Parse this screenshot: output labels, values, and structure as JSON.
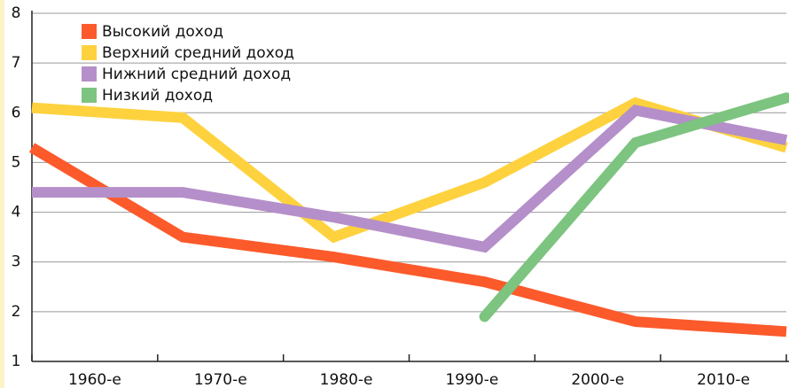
{
  "chart_data": {
    "type": "line",
    "categories": [
      "1960-е",
      "1970-е",
      "1980-е",
      "1990-е",
      "2000-е",
      "2010-е"
    ],
    "series": [
      {
        "name": "Высокий доход",
        "color": "#fc5a2b",
        "values": [
          5.3,
          3.5,
          3.1,
          2.6,
          1.8,
          1.6
        ]
      },
      {
        "name": "Верхний средний доход",
        "color": "#fed23e",
        "values": [
          6.1,
          5.9,
          3.5,
          4.6,
          6.2,
          5.3
        ]
      },
      {
        "name": "Нижний средний доход",
        "color": "#b58fc9",
        "values": [
          4.4,
          4.4,
          3.9,
          3.3,
          6.05,
          5.45
        ]
      },
      {
        "name": "Низкий доход",
        "color": "#7cc480",
        "values": [
          null,
          null,
          null,
          1.9,
          5.4,
          6.3
        ]
      }
    ],
    "ylim": [
      1,
      8
    ],
    "yticks": [
      1,
      2,
      3,
      4,
      5,
      6,
      7,
      8
    ],
    "grid": true,
    "legend": "top-left"
  }
}
